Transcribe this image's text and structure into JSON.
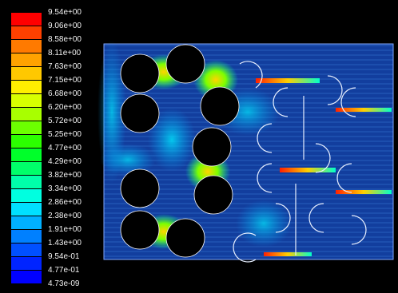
{
  "legend": {
    "labels": [
      "9.54e+00",
      "9.06e+00",
      "8.58e+00",
      "8.11e+00",
      "7.63e+00",
      "7.15e+00",
      "6.68e+00",
      "6.20e+00",
      "5.72e+00",
      "5.25e+00",
      "4.77e+00",
      "4.29e+00",
      "3.82e+00",
      "3.34e+00",
      "2.86e+00",
      "2.38e+00",
      "1.91e+00",
      "1.43e+00",
      "9.54e-01",
      "4.77e-01",
      "4.73e-09"
    ],
    "colors": [
      "#ff0000",
      "#ff4000",
      "#ff7a00",
      "#ffa200",
      "#ffc800",
      "#ffee00",
      "#d8ff00",
      "#a8ff00",
      "#6cff00",
      "#2cff00",
      "#00ff2a",
      "#00ff6a",
      "#00ffaa",
      "#00ffe0",
      "#00e0ff",
      "#00b0ff",
      "#0080ff",
      "#0050ff",
      "#0024ff",
      "#0000ff"
    ]
  },
  "colors": {
    "background": "#000000",
    "field": "#0a2f8f",
    "obstacle": "#000000"
  }
}
